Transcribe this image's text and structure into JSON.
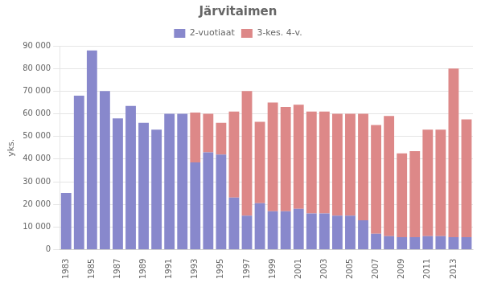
{
  "chart_data": {
    "type": "bar",
    "stacked": true,
    "title": "Järvitaimen",
    "ylabel": "yks.",
    "categories": [
      "1983",
      null,
      "1985",
      null,
      "1987",
      null,
      "1989",
      null,
      "1991",
      null,
      "1993",
      null,
      "1995",
      null,
      "1997",
      null,
      "1999",
      null,
      "2001",
      null,
      "2003",
      null,
      "2005",
      null,
      "2007",
      null,
      "2009",
      null,
      "2011",
      null,
      "2013",
      null
    ],
    "series": [
      {
        "name": "2-vuotiaat",
        "color": "#8888cc",
        "values": [
          25000,
          68000,
          88000,
          70000,
          58000,
          63500,
          56000,
          53000,
          60000,
          60000,
          38500,
          43000,
          42000,
          23000,
          15000,
          20500,
          17000,
          17000,
          18000,
          16000,
          16000,
          15000,
          15000,
          13000,
          7000,
          6000,
          5500,
          5500,
          6000,
          6000,
          5500,
          5500
        ]
      },
      {
        "name": "3-kes. 4-v.",
        "color": "#dd8888",
        "values": [
          0,
          0,
          0,
          0,
          0,
          0,
          0,
          0,
          0,
          0,
          22000,
          17000,
          14000,
          38000,
          55000,
          36000,
          48000,
          46000,
          46000,
          45000,
          45000,
          45000,
          45000,
          47000,
          48000,
          53000,
          37000,
          38000,
          47000,
          47000,
          74500,
          52000
        ]
      }
    ],
    "ylim": [
      0,
      90000
    ],
    "yticks": [
      0,
      {
        "value": 10000,
        "label": "10 000"
      },
      {
        "value": 20000,
        "label": "20 000"
      },
      {
        "value": 30000,
        "label": "30 000"
      },
      {
        "value": 40000,
        "label": "40 000"
      },
      {
        "value": 50000,
        "label": "50 000"
      },
      {
        "value": 60000,
        "label": "60 000"
      },
      {
        "value": 70000,
        "label": "70 000"
      },
      {
        "value": 80000,
        "label": "80 000"
      },
      {
        "value": 90000,
        "label": "90 000"
      }
    ],
    "grid": true,
    "legend": "top"
  }
}
